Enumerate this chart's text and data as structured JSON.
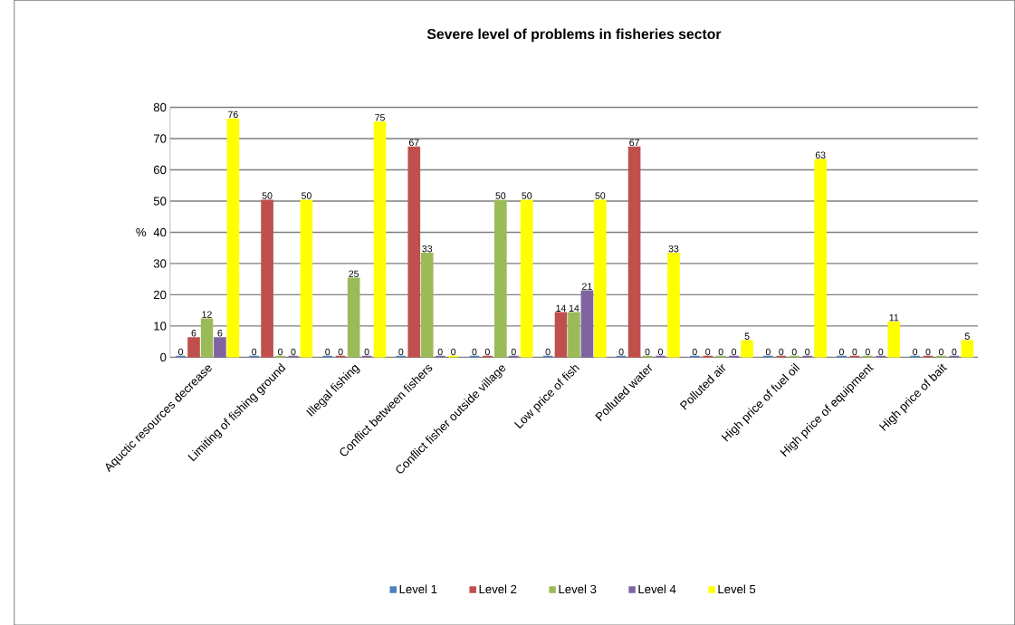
{
  "chart_data": {
    "type": "bar",
    "title": "Severe level of problems in fisheries sector",
    "ylabel": "%",
    "categories": [
      "Aquctic resources decrease",
      "Limiting of fishing ground",
      "Illegal fishing",
      "Conflict between fishers",
      "Conflict fisher outside village",
      "Low price of fish",
      "Polluted water",
      "Polluted air",
      "High price of fuel oil",
      "High price of equipment",
      "High price of bait"
    ],
    "series": [
      {
        "name": "Level 1",
        "color": "#4f81bd",
        "values": [
          0,
          0,
          0,
          0,
          0,
          0,
          0,
          0,
          0,
          0,
          0
        ]
      },
      {
        "name": "Level 2",
        "color": "#c0504d",
        "values": [
          6,
          50,
          0,
          67,
          0,
          14,
          67,
          0,
          0,
          0,
          0
        ]
      },
      {
        "name": "Level 3",
        "color": "#9bbb59",
        "values": [
          12,
          0,
          25,
          33,
          50,
          14,
          0,
          0,
          0,
          0,
          0
        ]
      },
      {
        "name": "Level 4",
        "color": "#8064a2",
        "values": [
          6,
          0,
          0,
          0,
          0,
          21,
          0,
          0,
          0,
          0,
          0
        ]
      },
      {
        "name": "Level 5",
        "color": "#ffff00",
        "values": [
          76,
          50,
          75,
          0,
          50,
          50,
          33,
          5,
          63,
          11,
          5
        ]
      }
    ],
    "ylim": [
      0,
      80
    ],
    "yticks": [
      0,
      10,
      20,
      30,
      40,
      50,
      60,
      70,
      80
    ],
    "grid": "y",
    "legend": "bottom",
    "data_labels": true
  }
}
